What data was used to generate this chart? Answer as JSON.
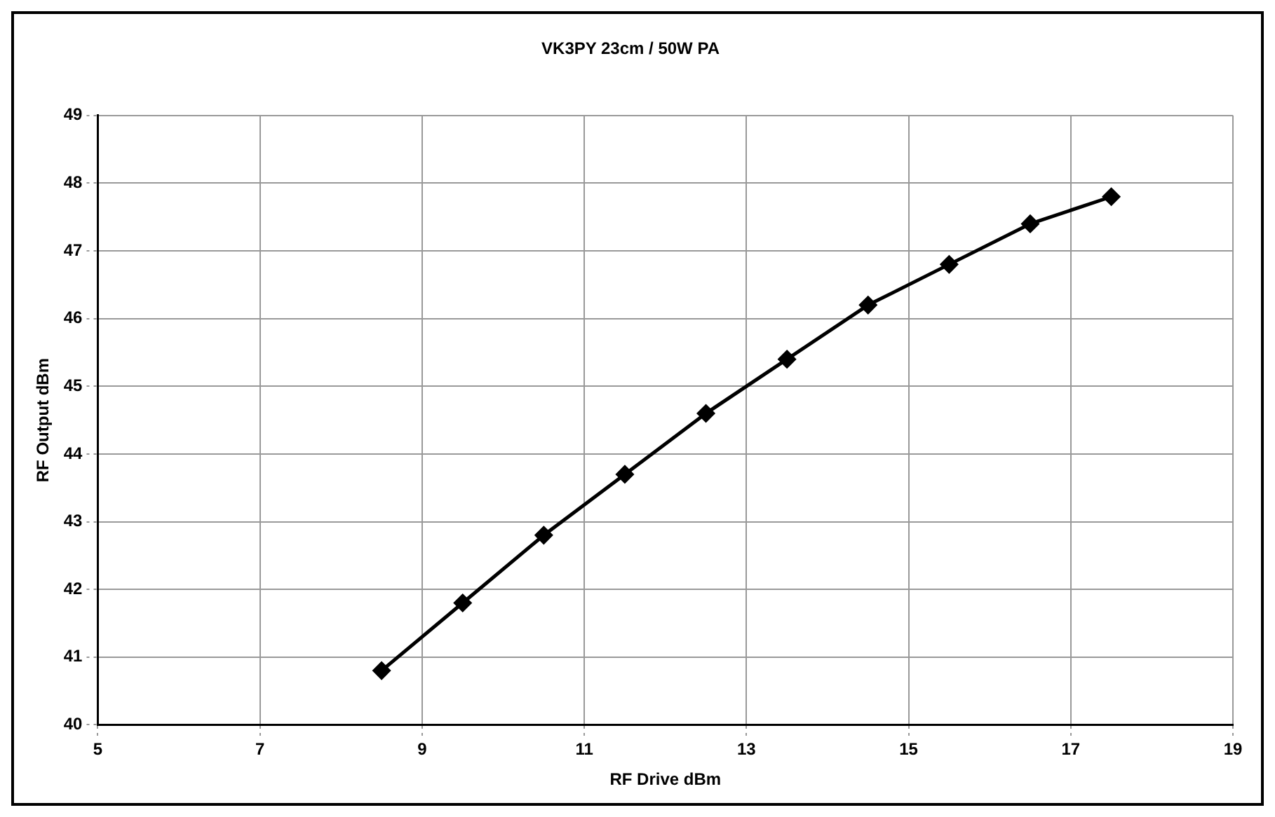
{
  "chart_data": {
    "type": "line",
    "title": "VK3PY 23cm / 50W PA",
    "xlabel": "RF Drive dBm",
    "ylabel": "RF Output dBm",
    "x": [
      8.5,
      9.5,
      10.5,
      11.5,
      12.5,
      13.5,
      14.5,
      15.5,
      16.5,
      17.5
    ],
    "series": [
      {
        "color": "#000000",
        "values": [
          40.8,
          41.8,
          42.8,
          43.7,
          44.6,
          45.4,
          46.2,
          46.8,
          47.4,
          47.8
        ]
      }
    ],
    "xlim": [
      5,
      19
    ],
    "xticks": [
      5,
      7,
      9,
      11,
      13,
      15,
      17,
      19
    ],
    "ylim": [
      40,
      49
    ],
    "yticks": [
      40,
      41,
      42,
      43,
      44,
      45,
      46,
      47,
      48,
      49
    ],
    "grid": true,
    "legend": false,
    "marker": "diamond",
    "line_style": "solid"
  }
}
